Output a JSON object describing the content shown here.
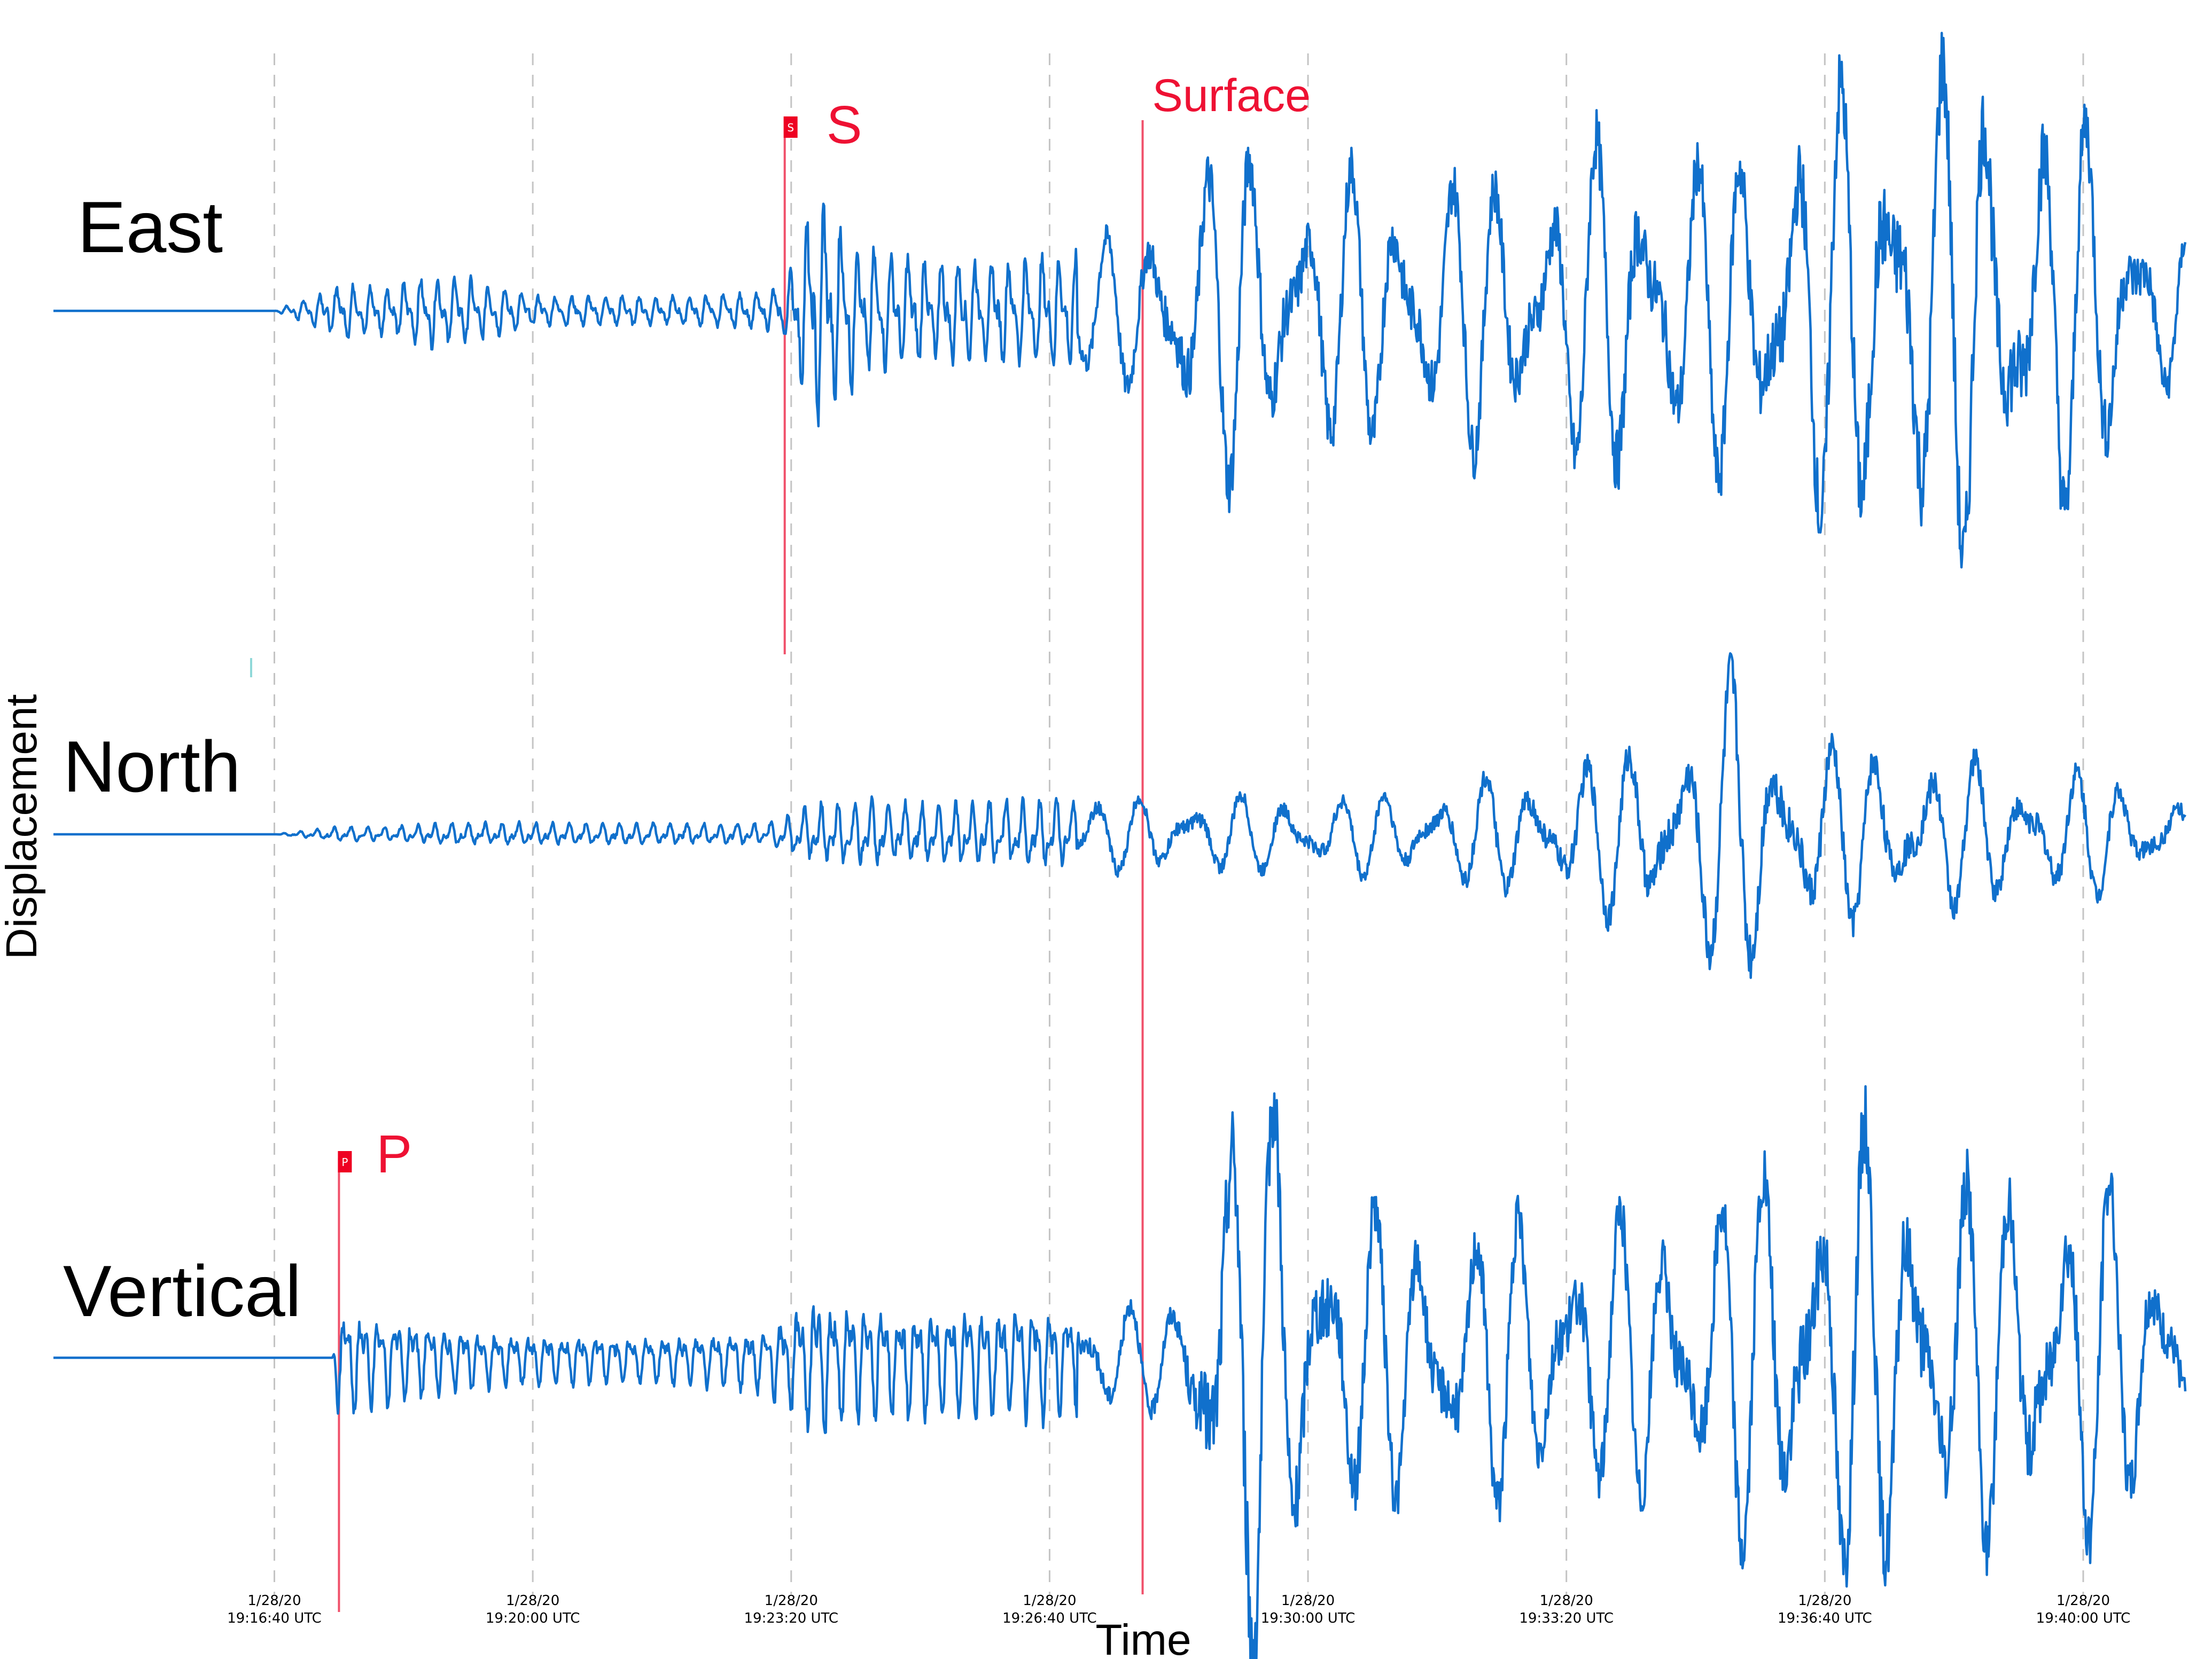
{
  "chart_data": {
    "type": "line",
    "title": "",
    "xlabel": "Time",
    "ylabel": "Displacement",
    "grid": true,
    "x_ticks": [
      {
        "date": "1/28/20",
        "time": "19:16:40 UTC"
      },
      {
        "date": "1/28/20",
        "time": "19:20:00 UTC"
      },
      {
        "date": "1/28/20",
        "time": "19:23:20 UTC"
      },
      {
        "date": "1/28/20",
        "time": "19:26:40 UTC"
      },
      {
        "date": "1/28/20",
        "time": "19:30:00 UTC"
      },
      {
        "date": "1/28/20",
        "time": "19:33:20 UTC"
      },
      {
        "date": "1/28/20",
        "time": "19:36:40 UTC"
      },
      {
        "date": "1/28/20",
        "time": "19:40:00 UTC"
      }
    ],
    "x_range": [
      "19:13:49 UTC",
      "19:41:19 UTC"
    ],
    "phase_arrivals": [
      {
        "label": "P",
        "flag": "P",
        "time": "19:17:30 UTC"
      },
      {
        "label": "S",
        "flag": "S",
        "time": "19:23:15 UTC"
      },
      {
        "label": "Surface",
        "flag": "",
        "time": "19:27:52 UTC"
      }
    ],
    "series": [
      {
        "name": "East",
        "units": "relative displacement",
        "time": [
          "19:13:49",
          "19:16:40",
          "19:17:30",
          "19:18:10",
          "19:18:40",
          "19:19:10",
          "19:20:00",
          "19:21:00",
          "19:22:00",
          "19:23:00",
          "19:23:15",
          "19:23:40",
          "19:24:20",
          "19:25:00",
          "19:26:00",
          "19:27:00",
          "19:27:52",
          "19:28:20",
          "19:29:00",
          "19:30:00",
          "19:31:00",
          "19:32:00",
          "19:33:00",
          "19:34:00",
          "19:35:00",
          "19:36:00",
          "19:37:00",
          "19:38:00",
          "19:39:00",
          "19:40:00",
          "19:41:00",
          "19:41:19"
        ],
        "envelope": [
          0.0,
          0.0,
          0.09,
          0.08,
          0.12,
          0.11,
          0.05,
          0.05,
          0.05,
          0.06,
          0.09,
          0.39,
          0.21,
          0.18,
          0.17,
          0.19,
          0.28,
          0.45,
          0.55,
          0.45,
          0.45,
          0.45,
          0.45,
          0.58,
          0.5,
          0.62,
          0.74,
          0.82,
          0.78,
          0.62,
          0.35,
          0.25
        ]
      },
      {
        "name": "North",
        "units": "relative displacement",
        "time": [
          "19:13:49",
          "19:16:40",
          "19:17:30",
          "19:18:10",
          "19:19:00",
          "19:20:00",
          "19:21:00",
          "19:22:00",
          "19:23:00",
          "19:23:40",
          "19:24:20",
          "19:25:00",
          "19:26:00",
          "19:27:00",
          "19:27:52",
          "19:28:40",
          "19:29:30",
          "19:30:00",
          "19:31:00",
          "19:32:00",
          "19:33:00",
          "19:34:00",
          "19:35:00",
          "19:35:30",
          "19:36:00",
          "19:37:00",
          "19:38:00",
          "19:39:00",
          "19:40:00",
          "19:41:00",
          "19:41:19"
        ],
        "envelope": [
          0.0,
          0.0,
          0.02,
          0.02,
          0.03,
          0.03,
          0.03,
          0.03,
          0.03,
          0.08,
          0.09,
          0.08,
          0.09,
          0.09,
          0.1,
          0.11,
          0.1,
          0.11,
          0.11,
          0.14,
          0.17,
          0.22,
          0.3,
          0.42,
          0.3,
          0.23,
          0.22,
          0.18,
          0.17,
          0.12,
          0.1
        ]
      },
      {
        "name": "Vertical",
        "units": "relative displacement",
        "time": [
          "19:13:49",
          "19:17:25",
          "19:17:30",
          "19:18:10",
          "19:19:00",
          "19:20:00",
          "19:21:00",
          "19:22:00",
          "19:23:00",
          "19:23:40",
          "19:24:20",
          "19:25:00",
          "19:26:00",
          "19:27:00",
          "19:27:52",
          "19:28:20",
          "19:28:50",
          "19:29:20",
          "19:30:00",
          "19:31:00",
          "19:32:00",
          "19:33:00",
          "19:34:00",
          "19:35:00",
          "19:36:00",
          "19:37:00",
          "19:38:00",
          "19:39:00",
          "19:40:00",
          "19:41:00",
          "19:41:19"
        ],
        "envelope": [
          0.0,
          0.0,
          0.09,
          0.07,
          0.05,
          0.04,
          0.04,
          0.04,
          0.05,
          0.12,
          0.09,
          0.09,
          0.09,
          0.09,
          0.08,
          0.09,
          0.42,
          0.45,
          0.3,
          0.22,
          0.22,
          0.22,
          0.22,
          0.25,
          0.31,
          0.36,
          0.32,
          0.28,
          0.3,
          0.2,
          0.12
        ]
      }
    ],
    "channel_labels": [
      "East",
      "North",
      "Vertical"
    ]
  }
}
